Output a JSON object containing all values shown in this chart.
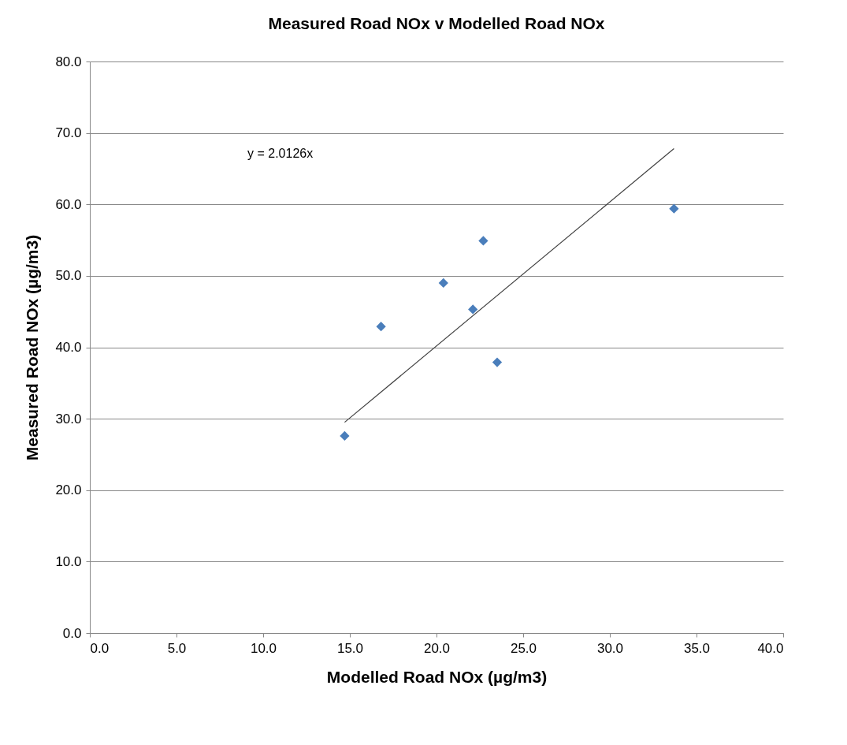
{
  "chart_data": {
    "type": "scatter",
    "title": "Measured Road NOx v Modelled Road NOx",
    "xlabel": "Modelled Road NOx (µg/m3)",
    "ylabel": "Measured Road NOx (µg/m3)",
    "grid": "y",
    "xlim": [
      0,
      40
    ],
    "ylim": [
      0,
      80
    ],
    "xticks": [
      {
        "value": 0,
        "label": "0.0"
      },
      {
        "value": 5,
        "label": "5.0"
      },
      {
        "value": 10,
        "label": "10.0"
      },
      {
        "value": 15,
        "label": "15.0"
      },
      {
        "value": 20,
        "label": "20.0"
      },
      {
        "value": 25,
        "label": "25.0"
      },
      {
        "value": 30,
        "label": "30.0"
      },
      {
        "value": 35,
        "label": "35.0"
      },
      {
        "value": 40,
        "label": "40.0"
      }
    ],
    "yticks": [
      {
        "value": 0,
        "label": "0.0"
      },
      {
        "value": 10,
        "label": "10.0"
      },
      {
        "value": 20,
        "label": "20.0"
      },
      {
        "value": 30,
        "label": "30.0"
      },
      {
        "value": 40,
        "label": "40.0"
      },
      {
        "value": 50,
        "label": "50.0"
      },
      {
        "value": 60,
        "label": "60.0"
      },
      {
        "value": 70,
        "label": "70.0"
      },
      {
        "value": 80,
        "label": "80.0"
      }
    ],
    "annotations": [
      "y = 2.0126x"
    ],
    "series": [
      {
        "marker": "diamond",
        "color": "#4a7ebb",
        "x": [
          14.7,
          16.8,
          20.4,
          22.1,
          22.7,
          23.5,
          33.7
        ],
        "values": [
          27.6,
          42.9,
          49.0,
          45.3,
          54.9,
          37.9,
          59.4
        ]
      },
      {
        "type": "line",
        "marker": "none",
        "color": "#404040",
        "x": [
          14.7,
          33.7
        ],
        "values": [
          29.5,
          67.8
        ]
      }
    ]
  }
}
